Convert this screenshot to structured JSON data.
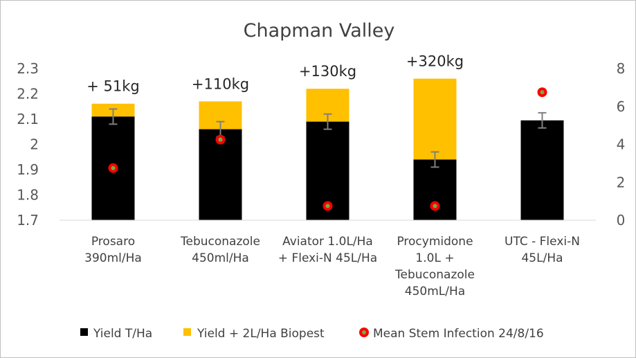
{
  "chart_data": {
    "type": "bar",
    "title": "Chapman Valley",
    "categories": [
      [
        "Prosaro",
        "390ml/Ha"
      ],
      [
        "Tebuconazole",
        "450ml/Ha"
      ],
      [
        "Aviator 1.0L/Ha",
        "+ Flexi-N 45L/Ha"
      ],
      [
        "Procymidone",
        "1.0L +",
        "Tebuconazole",
        "450mL/Ha"
      ],
      [
        "UTC - Flexi-N",
        "45L/Ha"
      ]
    ],
    "ylim": [
      1.7,
      2.3
    ],
    "yticks": [
      "1.7",
      "1.8",
      "1.9",
      "2",
      "2.1",
      "2.2",
      "2.3"
    ],
    "y2lim": [
      0,
      8
    ],
    "y2ticks": [
      "0",
      "2",
      "4",
      "6",
      "8"
    ],
    "series": [
      {
        "name": "Yield T/Ha",
        "axis": "left",
        "kind": "bar",
        "color": "#000000",
        "values": [
          2.11,
          2.06,
          2.09,
          1.94,
          2.095
        ],
        "error": [
          0.03,
          0.03,
          0.03,
          0.03,
          0.03
        ]
      },
      {
        "name": "Yield + 2L/Ha Biopest",
        "axis": "left",
        "kind": "stacked-bar-top",
        "color": "#FFC000",
        "values": [
          2.161,
          2.17,
          2.22,
          2.26,
          null
        ]
      },
      {
        "name": "Mean Stem Infection 24/8/16",
        "axis": "right",
        "kind": "marker",
        "color": "#FF0000",
        "center_color": "#70AD47",
        "values": [
          2.75,
          4.25,
          0.75,
          0.75,
          6.75
        ]
      }
    ],
    "annotations": [
      "+ 51kg",
      "+110kg",
      "+130kg",
      "+320kg",
      ""
    ],
    "legend_position": "bottom",
    "grid": false
  }
}
